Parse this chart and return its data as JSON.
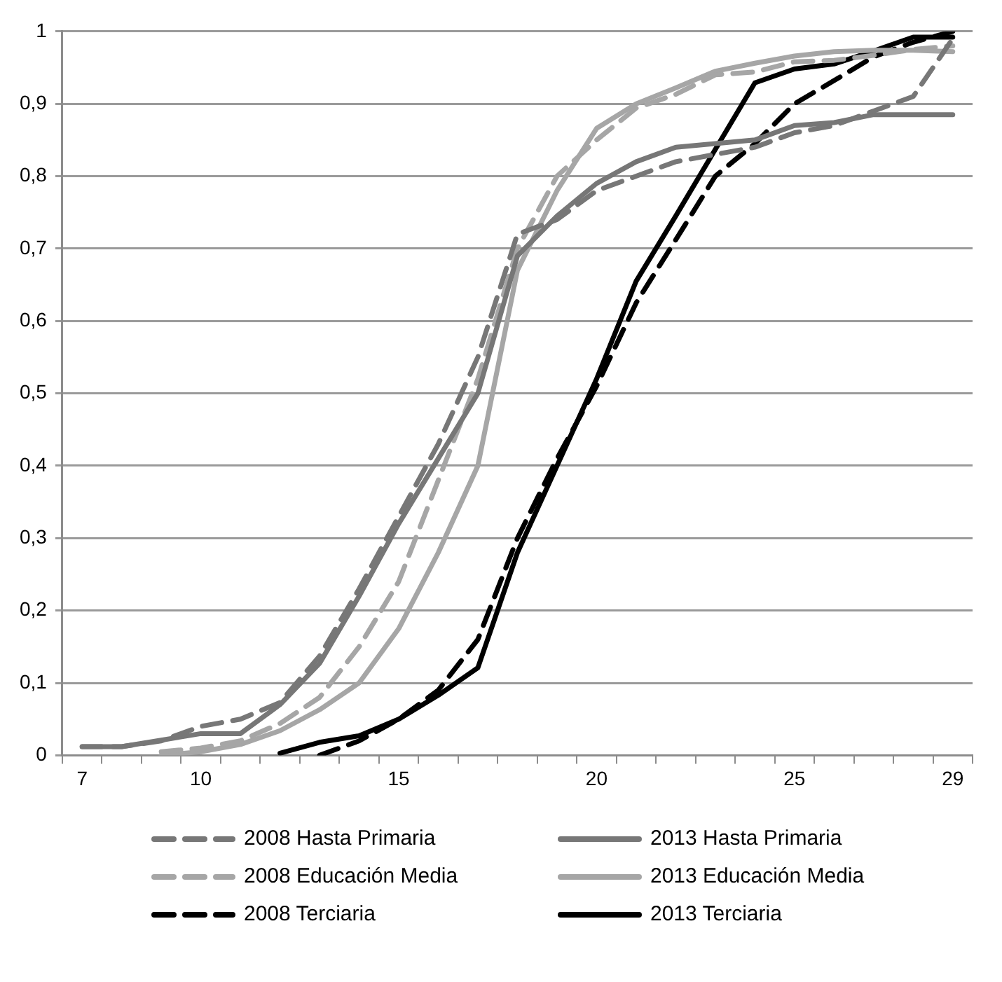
{
  "chart_data": {
    "type": "line",
    "categories": [
      "7",
      null,
      null,
      "10",
      null,
      null,
      null,
      null,
      "15",
      null,
      null,
      null,
      null,
      "20",
      null,
      null,
      null,
      null,
      "25",
      null,
      null,
      null,
      "29"
    ],
    "ylim": [
      0,
      1
    ],
    "yticks": [
      0,
      {
        "value": 0.1,
        "label": "0,1"
      },
      {
        "value": 0.2,
        "label": "0,2"
      },
      {
        "value": 0.3,
        "label": "0,3"
      },
      {
        "value": 0.4,
        "label": "0,4"
      },
      {
        "value": 0.5,
        "label": "0,5"
      },
      {
        "value": 0.6,
        "label": "0,6"
      },
      {
        "value": 0.7,
        "label": "0,7"
      },
      {
        "value": 0.8,
        "label": "0,8"
      },
      {
        "value": 0.9,
        "label": "0,9"
      },
      1
    ],
    "grid": "y",
    "legend": "bottom",
    "marker": "none",
    "series": [
      {
        "name": "2008 Hasta Primaria",
        "color": "#777777",
        "line_style": "dashed",
        "values": [
          0.012,
          0.012,
          0.02,
          0.04,
          0.05,
          0.073,
          0.137,
          0.23,
          0.33,
          0.43,
          0.55,
          0.72,
          0.74,
          0.78,
          0.8,
          0.82,
          0.83,
          0.84,
          0.86,
          0.87,
          0.89,
          0.91,
          0.99
        ]
      },
      {
        "name": "2013 Hasta Primaria",
        "color": "#777777",
        "line_style": "solid",
        "values": [
          0.012,
          0.012,
          0.021,
          0.03,
          0.03,
          0.07,
          0.127,
          0.22,
          0.32,
          0.41,
          0.5,
          0.69,
          0.745,
          0.79,
          0.82,
          0.84,
          0.845,
          0.85,
          0.87,
          0.874,
          0.885,
          0.885,
          0.885
        ]
      },
      {
        "name": "2008 Educación Media",
        "color": "#a6a6a6",
        "line_style": "dashed",
        "values": [
          null,
          null,
          0.005,
          0.01,
          0.02,
          0.044,
          0.08,
          0.15,
          0.24,
          0.38,
          0.52,
          0.7,
          0.8,
          0.85,
          0.894,
          0.913,
          0.94,
          0.944,
          0.958,
          0.96,
          0.967,
          0.975,
          0.98
        ]
      },
      {
        "name": "2013 Educación Media",
        "color": "#a6a6a6",
        "line_style": "solid",
        "values": [
          null,
          null,
          0.0,
          0.005,
          0.015,
          0.034,
          0.063,
          0.1,
          0.175,
          0.28,
          0.4,
          0.67,
          0.78,
          0.866,
          0.9,
          0.922,
          0.945,
          0.956,
          0.966,
          0.972,
          0.974,
          0.974,
          0.972
        ]
      },
      {
        "name": "2008 Terciaria",
        "color": "#000000",
        "line_style": "dashed",
        "values": [
          null,
          null,
          null,
          null,
          null,
          null,
          0.0,
          0.02,
          0.05,
          0.09,
          0.16,
          0.3,
          0.41,
          0.51,
          0.625,
          0.712,
          0.8,
          0.845,
          0.9,
          0.932,
          0.965,
          0.985,
          1.0
        ]
      },
      {
        "name": "2013 Terciaria",
        "color": "#000000",
        "line_style": "solid",
        "values": [
          null,
          null,
          null,
          null,
          null,
          0.003,
          0.018,
          0.027,
          0.05,
          0.083,
          0.121,
          0.28,
          0.4,
          0.52,
          0.655,
          0.745,
          0.837,
          0.929,
          0.948,
          0.955,
          0.973,
          0.992,
          0.992
        ]
      }
    ]
  }
}
